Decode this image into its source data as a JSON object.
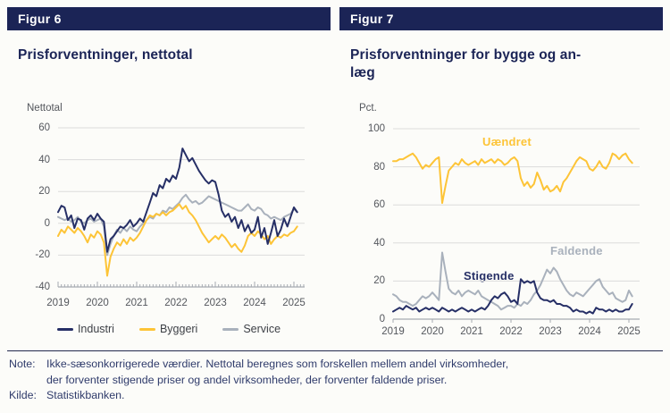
{
  "colors": {
    "navy": "#262F66",
    "yellow": "#FDC437",
    "gray": "#A9B1BC",
    "header_bar": "#1B2456",
    "grid_line": "#DBDBDB",
    "axis_line": "#A6AAB1",
    "note_text": "#2F3B6B"
  },
  "figure6": {
    "header": "Figur 6",
    "title": "Prisforventninger, nettotal",
    "unit": "Nettotal",
    "legend": [
      {
        "label": "Industri"
      },
      {
        "label": "Byggeri"
      },
      {
        "label": "Service"
      }
    ]
  },
  "figure7": {
    "header": "Figur 7",
    "title": "Prisforventninger for bygge og an-\nlæg",
    "unit": "Pct."
  },
  "notes": {
    "note_label": "Note:",
    "note_text": "Ikke-sæsonkorrigerede værdier. Nettotal beregnes som forskellen mellem andel virksomheder,\nder forventer stigende priser og andel virksomheder, der forventer faldende priser.",
    "source_label": "Kilde:",
    "source_text": "Statistikbanken."
  },
  "chart_data": [
    {
      "id": "figur6",
      "type": "line",
      "title": "Prisforventninger, nettotal",
      "ylabel": "Nettotal",
      "ylim": [
        -40,
        60
      ],
      "yticks": [
        60,
        40,
        20,
        0,
        -20,
        -40
      ],
      "x_unit": "month",
      "x_start": "2019-01",
      "x_end": "2025-02",
      "xtick_years": [
        2019,
        2020,
        2021,
        2022,
        2023,
        2024,
        2025
      ],
      "grid": "horizontal",
      "legend_position": "bottom",
      "series": [
        {
          "name": "Industri",
          "color": "#262F66",
          "values": [
            7,
            11,
            10,
            2,
            5,
            -3,
            3,
            2,
            -4,
            3,
            5,
            2,
            6,
            3,
            1,
            -18,
            -10,
            -8,
            -5,
            -2,
            -3,
            -1,
            2,
            -2,
            0,
            3,
            1,
            7,
            13,
            19,
            17,
            24,
            22,
            28,
            26,
            30,
            28,
            35,
            47,
            43,
            39,
            41,
            37,
            33,
            30,
            27,
            25,
            27,
            26,
            18,
            8,
            4,
            6,
            1,
            4,
            -3,
            2,
            -5,
            -1,
            -6,
            -4,
            4,
            -9,
            -3,
            -13,
            -6,
            2,
            -8,
            -4,
            3,
            -2,
            4,
            10,
            7
          ]
        },
        {
          "name": "Byggeri",
          "color": "#FDC437",
          "values": [
            -8,
            -4,
            -6,
            -2,
            -4,
            -6,
            -3,
            -5,
            -8,
            -12,
            -7,
            -9,
            -5,
            -7,
            -12,
            -33,
            -21,
            -16,
            -12,
            -14,
            -10,
            -13,
            -9,
            -11,
            -9,
            -6,
            -2,
            2,
            5,
            4,
            6,
            5,
            7,
            5,
            7,
            8,
            10,
            12,
            9,
            11,
            7,
            5,
            2,
            -2,
            -6,
            -9,
            -12,
            -10,
            -8,
            -10,
            -7,
            -9,
            -12,
            -15,
            -13,
            -16,
            -18,
            -14,
            -8,
            -6,
            -8,
            -5,
            -7,
            -10,
            -8,
            -13,
            -10,
            -8,
            -9,
            -7,
            -8,
            -6,
            -5,
            -2
          ]
        },
        {
          "name": "Service",
          "color": "#A9B1BC",
          "values": [
            4,
            3,
            2,
            3,
            1,
            2,
            4,
            1,
            0,
            2,
            3,
            1,
            2,
            3,
            -2,
            -20,
            -13,
            -8,
            -4,
            -6,
            -3,
            -5,
            -2,
            -4,
            -5,
            -2,
            0,
            2,
            4,
            3,
            6,
            5,
            8,
            7,
            10,
            9,
            11,
            13,
            16,
            18,
            15,
            13,
            14,
            12,
            13,
            15,
            17,
            16,
            15,
            14,
            13,
            12,
            11,
            10,
            9,
            8,
            8,
            10,
            12,
            9,
            8,
            10,
            9,
            6,
            5,
            3,
            4,
            3,
            2,
            4,
            5,
            6,
            9,
            7
          ]
        }
      ]
    },
    {
      "id": "figur7",
      "type": "line",
      "title": "Prisforventninger for bygge og anlæg",
      "ylabel": "Pct.",
      "ylim": [
        0,
        100
      ],
      "yticks": [
        100,
        80,
        60,
        40,
        20,
        0
      ],
      "x_unit": "month",
      "x_start": "2019-01",
      "x_end": "2025-02",
      "xtick_years": [
        2019,
        2020,
        2021,
        2022,
        2023,
        2024,
        2025
      ],
      "grid": "horizontal",
      "legend_position": "labels-in-chart",
      "series": [
        {
          "name": "Uændret",
          "color": "#FDC437",
          "values": [
            83,
            83,
            84,
            84,
            85,
            86,
            87,
            85,
            82,
            79,
            81,
            80,
            82,
            84,
            85,
            61,
            70,
            78,
            80,
            82,
            81,
            84,
            82,
            81,
            82,
            83,
            81,
            84,
            82,
            83,
            84,
            82,
            84,
            83,
            81,
            82,
            84,
            85,
            83,
            74,
            70,
            72,
            69,
            71,
            77,
            73,
            68,
            70,
            67,
            68,
            70,
            67,
            72,
            74,
            77,
            80,
            83,
            85,
            84,
            83,
            79,
            78,
            80,
            83,
            80,
            79,
            82,
            87,
            86,
            84,
            86,
            87,
            84,
            82
          ]
        },
        {
          "name": "Faldende",
          "color": "#A9B1BC",
          "values": [
            13,
            12,
            10,
            9,
            9,
            8,
            7,
            8,
            10,
            12,
            11,
            12,
            14,
            12,
            10,
            35,
            25,
            16,
            14,
            13,
            15,
            12,
            14,
            15,
            14,
            13,
            15,
            12,
            11,
            10,
            9,
            8,
            7,
            5,
            6,
            7,
            7,
            6,
            8,
            7,
            9,
            8,
            10,
            13,
            15,
            18,
            22,
            26,
            24,
            27,
            25,
            21,
            18,
            15,
            13,
            12,
            14,
            13,
            12,
            14,
            16,
            18,
            20,
            21,
            17,
            15,
            13,
            14,
            11,
            10,
            9,
            10,
            15,
            12
          ]
        },
        {
          "name": "Stigende",
          "color": "#262F66",
          "values": [
            4,
            5,
            6,
            5,
            7,
            6,
            5,
            6,
            4,
            5,
            6,
            5,
            6,
            5,
            4,
            6,
            5,
            4,
            5,
            4,
            5,
            6,
            5,
            4,
            5,
            4,
            5,
            6,
            5,
            7,
            10,
            12,
            11,
            13,
            14,
            12,
            9,
            10,
            8,
            21,
            19,
            20,
            19,
            20,
            14,
            11,
            10,
            10,
            9,
            10,
            8,
            8,
            7,
            7,
            6,
            4,
            5,
            4,
            4,
            3,
            4,
            3,
            6,
            5,
            5,
            4,
            5,
            4,
            5,
            4,
            4,
            5,
            5,
            8
          ]
        }
      ]
    }
  ]
}
